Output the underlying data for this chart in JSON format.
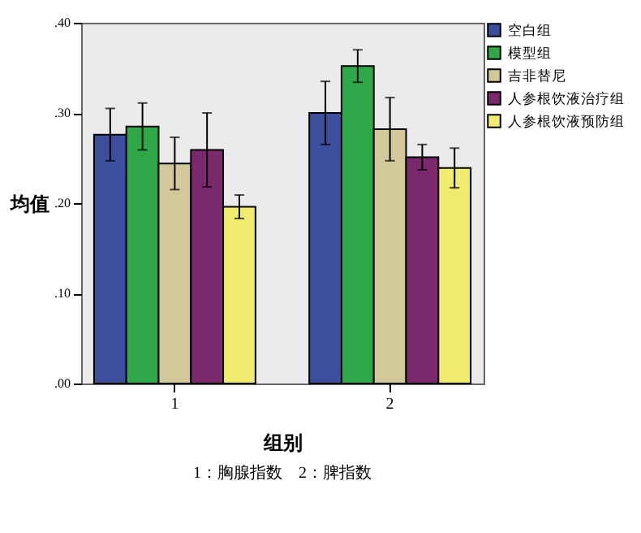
{
  "chart_data": {
    "type": "bar",
    "xlabel": "组别",
    "ylabel": "均值",
    "categories": [
      "1",
      "2"
    ],
    "series": [
      {
        "name": "空白组",
        "color": "#3b4f9e",
        "values": [
          0.276,
          0.3
        ],
        "errors": [
          0.029,
          0.035
        ]
      },
      {
        "name": "模型组",
        "color": "#2fa84a",
        "values": [
          0.285,
          0.352
        ],
        "errors": [
          0.026,
          0.018
        ]
      },
      {
        "name": "吉非替尼",
        "color": "#d2c99a",
        "values": [
          0.244,
          0.282
        ],
        "errors": [
          0.029,
          0.035
        ]
      },
      {
        "name": "人参根饮液治疗组",
        "color": "#7a2a6c",
        "values": [
          0.259,
          0.251
        ],
        "errors": [
          0.041,
          0.014
        ]
      },
      {
        "name": "人参根饮液预防组",
        "color": "#f0ec70",
        "values": [
          0.196,
          0.239
        ],
        "errors": [
          0.013,
          0.022
        ]
      }
    ],
    "ylim": [
      0,
      0.4
    ],
    "yticks": [
      {
        "value": 0,
        "label": ".00"
      },
      {
        "value": 0.1,
        "label": ".10"
      },
      {
        "value": 0.2,
        "label": ".20"
      },
      {
        "value": 0.3,
        "label": ".30"
      },
      {
        "value": 0.4,
        "label": ".40"
      }
    ],
    "annotations": [
      "1：胸腺指数　2：脾指数"
    ],
    "legend": "top right",
    "grid": false
  }
}
